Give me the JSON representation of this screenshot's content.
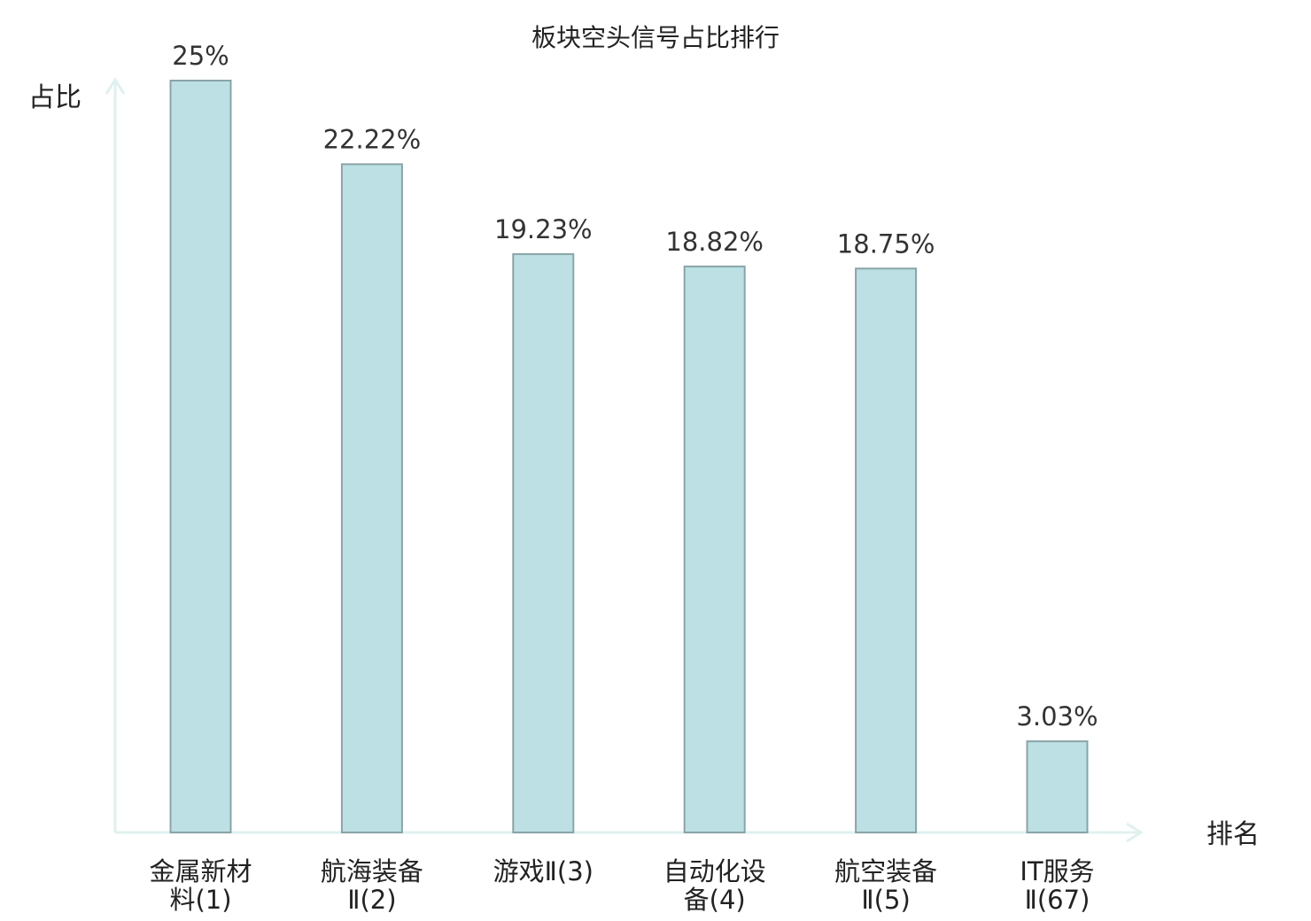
{
  "chart_data": {
    "type": "bar",
    "title": "板块空头信号占比排行",
    "ylabel": "占比",
    "xlabel": "排名",
    "categories": [
      [
        "金属新材",
        "料(1)"
      ],
      [
        "航海装备",
        "Ⅱ(2)"
      ],
      [
        "游戏Ⅱ(3)"
      ],
      [
        "自动化设",
        "备(4)"
      ],
      [
        "航空装备",
        "Ⅱ(5)"
      ],
      [
        "IT服务",
        "Ⅱ(67)"
      ]
    ],
    "values": [
      25,
      22.22,
      19.23,
      18.82,
      18.75,
      3.03
    ],
    "value_labels": [
      "25%",
      "22.22%",
      "19.23%",
      "18.82%",
      "18.75%",
      "3.03%"
    ],
    "ylim": [
      0,
      25
    ],
    "grid": false,
    "colors": {
      "bar_fill": "#bce0e3",
      "bar_stroke": "#8aa4a8",
      "axis": "#dff1ef",
      "highlight_label": "#e02020"
    },
    "highlight_index": 5
  }
}
